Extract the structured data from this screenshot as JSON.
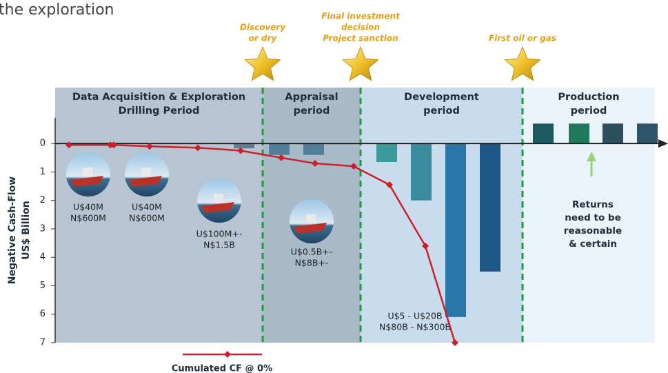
{
  "heading": "the exploration",
  "chart_data": {
    "type": "combo",
    "y_label": [
      "Negative Cash-Flow",
      "US$ Billion"
    ],
    "ylim": [
      -0.9,
      7
    ],
    "y_inverted": true,
    "yticks": [
      0,
      1,
      2,
      3,
      4,
      5,
      6,
      7
    ],
    "xlim": [
      0,
      88
    ],
    "phases": [
      {
        "label": [
          "Data Acquisition & Exploration",
          "Drilling Period"
        ],
        "start": 0,
        "end": 30.1,
        "color": "#b6c5d1"
      },
      {
        "label": [
          "Appraisal",
          "period"
        ],
        "start": 30.1,
        "end": 44.3,
        "color": "#a9bac8"
      },
      {
        "label": [
          "Development",
          "period"
        ],
        "start": 44.3,
        "end": 67.8,
        "color": "#c8dcee"
      },
      {
        "label": [
          "Production",
          "period"
        ],
        "start": 67.8,
        "end": 87,
        "color": "#eaf2fa"
      }
    ],
    "milestones": [
      {
        "label": [
          "Discovery",
          "or dry"
        ],
        "x": 30.1
      },
      {
        "label": [
          "Final investment",
          "decision",
          "Project sanction"
        ],
        "x": 44.3
      },
      {
        "label": [
          "First oil or gas"
        ],
        "x": 67.8
      }
    ],
    "bars": {
      "x": [
        27.4,
        32.5,
        37.5,
        48.1,
        53.1,
        58.1,
        63.1,
        70.8,
        76.0,
        80.9,
        85.9
      ],
      "values": [
        0.17,
        0.4,
        0.4,
        0.65,
        2.0,
        6.1,
        4.5,
        -0.7,
        -0.7,
        -0.7,
        -0.7
      ],
      "colors": [
        "#5f7e95",
        "#4f7f9b",
        "#4f7f9b",
        "#3b9b9a",
        "#3a8b9d",
        "#2877a8",
        "#1d5787",
        "#1d5a60",
        "#1e7a5a",
        "#2d4f5e",
        "#2e5567"
      ]
    },
    "series": [
      {
        "name": "Cumulated CF @ 0%",
        "color": "#cc1f2a",
        "x": [
          2,
          8,
          8.5,
          13.7,
          20.7,
          26.9,
          32.8,
          37.7,
          43.3,
          48.5,
          53.7,
          58
        ],
        "values": [
          0.05,
          0.05,
          0.05,
          0.1,
          0.15,
          0.25,
          0.5,
          0.7,
          0.8,
          1.45,
          3.6,
          7.0
        ]
      }
    ],
    "annotations": [
      [
        "U$40M",
        "N$600M"
      ],
      [
        "U$40M",
        "N$600M"
      ],
      [
        "U$100M+-",
        "N$1.5B"
      ],
      [
        "U$0.5B+-",
        "N$8B+-"
      ],
      [
        "U$5 - U$20B",
        "N$80B - N$300B"
      ],
      [
        "Returns",
        "need to be",
        "reasonable",
        "& certain"
      ]
    ]
  }
}
